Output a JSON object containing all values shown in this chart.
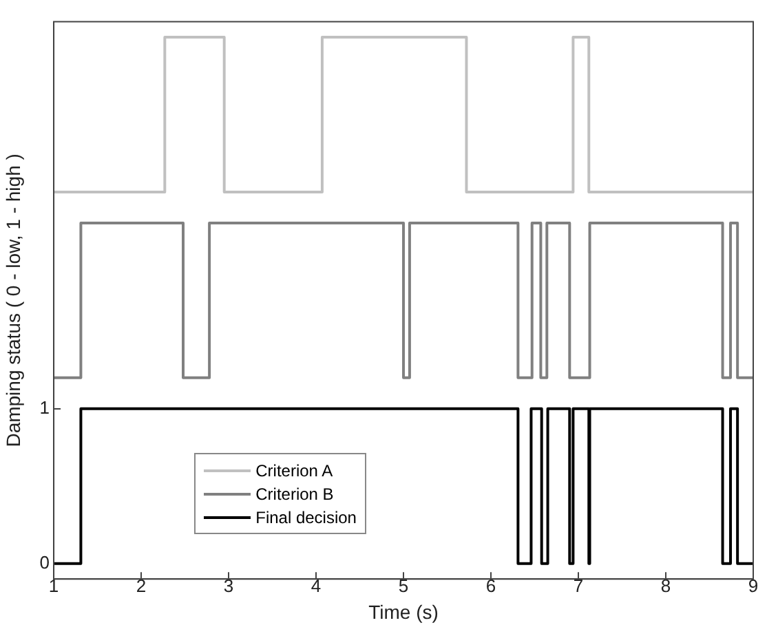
{
  "chart_data": {
    "type": "step",
    "xlabel": "Time (s)",
    "ylabel": "Damping status ( 0 - low, 1 - high )",
    "xlim": [
      1,
      9
    ],
    "xticks": [
      1,
      2,
      3,
      4,
      5,
      6,
      7,
      8,
      9
    ],
    "ylim": [
      -0.1,
      3.5
    ],
    "yticks": [
      0,
      1
    ],
    "grid": false,
    "legend": "bottom left",
    "line_style": "solid",
    "series": [
      {
        "name": "Criterion A",
        "color": "#c0c0c0",
        "x": [
          1,
          2.27,
          2.95,
          4.07,
          5.72,
          6.94,
          7.12,
          9
        ],
        "values": [
          2.4,
          3.4,
          2.4,
          3.4,
          2.4,
          3.4,
          2.4,
          2.4
        ]
      },
      {
        "name": "Criterion B",
        "color": "#808080",
        "x": [
          1,
          1.31,
          2.48,
          2.78,
          5.0,
          5.07,
          6.31,
          6.47,
          6.57,
          6.64,
          6.9,
          7.13,
          8.65,
          8.74,
          8.82,
          9
        ],
        "values": [
          1.2,
          2.2,
          1.2,
          2.2,
          1.2,
          2.2,
          1.2,
          2.2,
          1.2,
          2.2,
          1.2,
          2.2,
          1.2,
          2.2,
          1.2,
          1.2
        ]
      },
      {
        "name": "Final decision",
        "color": "#000000",
        "x": [
          1,
          1.31,
          6.31,
          6.46,
          6.58,
          6.65,
          6.9,
          6.94,
          7.12,
          7.13,
          8.65,
          8.74,
          8.82,
          9
        ],
        "values": [
          0,
          1,
          0,
          1,
          0,
          1,
          0,
          1,
          0,
          1,
          0,
          1,
          0,
          0
        ]
      }
    ]
  }
}
